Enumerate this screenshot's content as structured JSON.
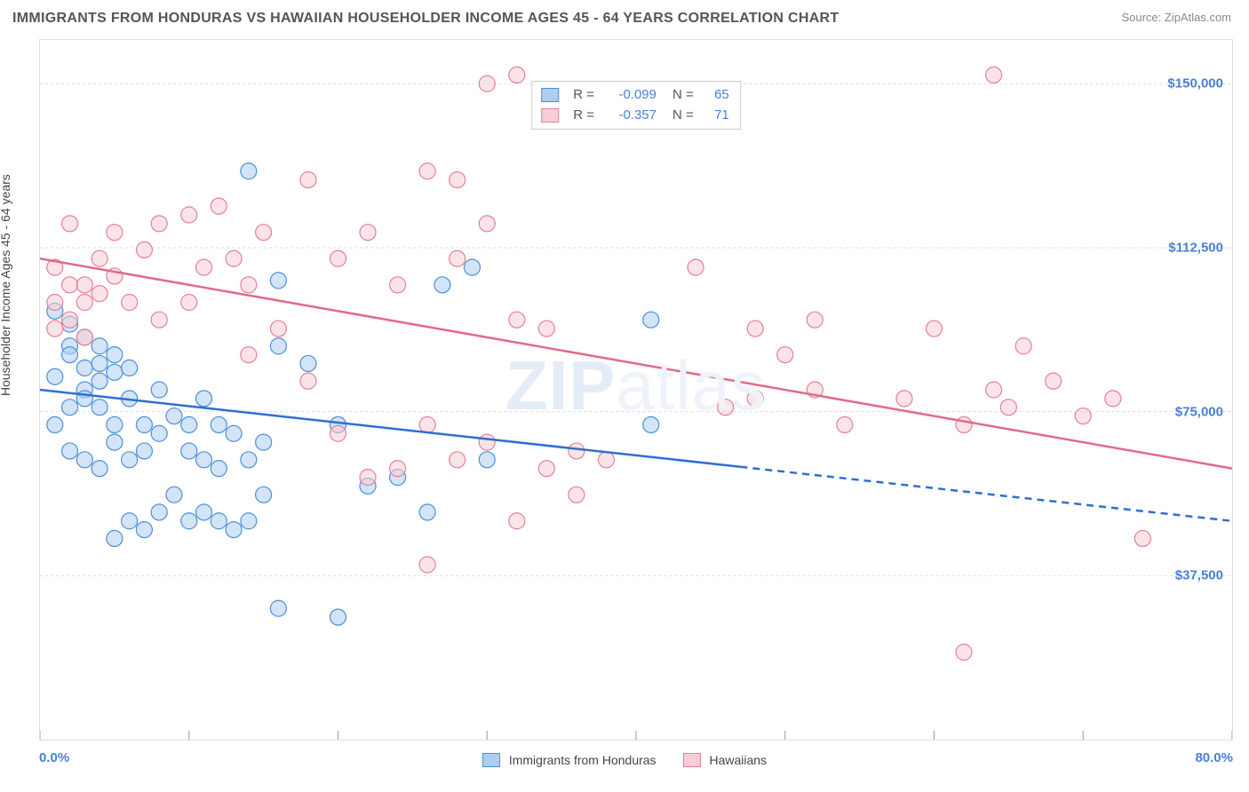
{
  "title": "IMMIGRANTS FROM HONDURAS VS HAWAIIAN HOUSEHOLDER INCOME AGES 45 - 64 YEARS CORRELATION CHART",
  "source": "Source: ZipAtlas.com",
  "ylabel": "Householder Income Ages 45 - 64 years",
  "watermark_bold": "ZIP",
  "watermark_thin": "atlas",
  "xaxis": {
    "min_label": "0.0%",
    "max_label": "80.0%",
    "min": 0,
    "max": 80
  },
  "yaxis": {
    "min": 0,
    "max": 160000,
    "ticks": [
      37500,
      75000,
      112500,
      150000
    ],
    "tick_labels": [
      "$37,500",
      "$75,000",
      "$112,500",
      "$150,000"
    ]
  },
  "colors": {
    "blue_fill": "#aecdf0",
    "blue_stroke": "#4a90d9",
    "pink_fill": "#f7cdd6",
    "pink_stroke": "#e57f9a",
    "blue_line": "#2e6fd1",
    "pink_line": "#e26a88",
    "grid": "#dddddd",
    "axis_text": "#4a7fd8"
  },
  "series": [
    {
      "name": "Immigrants from Honduras",
      "color_fill": "#aecdf0",
      "color_stroke": "#4a90d9",
      "R": "-0.099",
      "N": "65",
      "trend": {
        "y_at_xmin": 80000,
        "y_at_xmax": 50000,
        "solid_until_x": 47
      },
      "points": [
        [
          2,
          90000
        ],
        [
          2,
          95000
        ],
        [
          1,
          98000
        ],
        [
          3,
          85000
        ],
        [
          3,
          92000
        ],
        [
          2,
          88000
        ],
        [
          1,
          83000
        ],
        [
          3,
          80000
        ],
        [
          4,
          90000
        ],
        [
          4,
          86000
        ],
        [
          5,
          88000
        ],
        [
          4,
          82000
        ],
        [
          5,
          84000
        ],
        [
          3,
          78000
        ],
        [
          4,
          76000
        ],
        [
          5,
          72000
        ],
        [
          6,
          85000
        ],
        [
          6,
          78000
        ],
        [
          5,
          68000
        ],
        [
          6,
          64000
        ],
        [
          7,
          72000
        ],
        [
          8,
          80000
        ],
        [
          7,
          66000
        ],
        [
          8,
          70000
        ],
        [
          9,
          74000
        ],
        [
          10,
          72000
        ],
        [
          10,
          66000
        ],
        [
          11,
          78000
        ],
        [
          12,
          72000
        ],
        [
          11,
          64000
        ],
        [
          12,
          62000
        ],
        [
          13,
          70000
        ],
        [
          14,
          64000
        ],
        [
          9,
          56000
        ],
        [
          8,
          52000
        ],
        [
          10,
          50000
        ],
        [
          11,
          52000
        ],
        [
          12,
          50000
        ],
        [
          13,
          48000
        ],
        [
          14,
          50000
        ],
        [
          15,
          68000
        ],
        [
          16,
          90000
        ],
        [
          16,
          105000
        ],
        [
          15,
          56000
        ],
        [
          6,
          50000
        ],
        [
          7,
          48000
        ],
        [
          5,
          46000
        ],
        [
          4,
          62000
        ],
        [
          3,
          64000
        ],
        [
          2,
          66000
        ],
        [
          14,
          130000
        ],
        [
          18,
          86000
        ],
        [
          20,
          72000
        ],
        [
          22,
          58000
        ],
        [
          24,
          60000
        ],
        [
          27,
          104000
        ],
        [
          29,
          108000
        ],
        [
          26,
          52000
        ],
        [
          30,
          64000
        ],
        [
          16,
          30000
        ],
        [
          20,
          28000
        ],
        [
          41,
          96000
        ],
        [
          41,
          72000
        ],
        [
          2,
          76000
        ],
        [
          1,
          72000
        ]
      ]
    },
    {
      "name": "Hawaiians",
      "color_fill": "#f7cdd6",
      "color_stroke": "#e57f9a",
      "R": "-0.357",
      "N": "71",
      "trend": {
        "y_at_xmin": 110000,
        "y_at_xmax": 62000,
        "solid_until_x": 80
      },
      "points": [
        [
          1,
          100000
        ],
        [
          2,
          104000
        ],
        [
          1,
          108000
        ],
        [
          2,
          96000
        ],
        [
          3,
          100000
        ],
        [
          2,
          118000
        ],
        [
          4,
          110000
        ],
        [
          5,
          116000
        ],
        [
          4,
          102000
        ],
        [
          6,
          100000
        ],
        [
          7,
          112000
        ],
        [
          8,
          118000
        ],
        [
          8,
          96000
        ],
        [
          10,
          120000
        ],
        [
          12,
          122000
        ],
        [
          10,
          100000
        ],
        [
          11,
          108000
        ],
        [
          13,
          110000
        ],
        [
          14,
          104000
        ],
        [
          14,
          88000
        ],
        [
          15,
          116000
        ],
        [
          18,
          128000
        ],
        [
          16,
          94000
        ],
        [
          18,
          82000
        ],
        [
          20,
          110000
        ],
        [
          22,
          116000
        ],
        [
          24,
          104000
        ],
        [
          26,
          130000
        ],
        [
          28,
          110000
        ],
        [
          28,
          128000
        ],
        [
          30,
          150000
        ],
        [
          32,
          152000
        ],
        [
          30,
          118000
        ],
        [
          32,
          96000
        ],
        [
          26,
          72000
        ],
        [
          28,
          64000
        ],
        [
          24,
          62000
        ],
        [
          20,
          70000
        ],
        [
          22,
          60000
        ],
        [
          30,
          68000
        ],
        [
          34,
          94000
        ],
        [
          36,
          66000
        ],
        [
          36,
          56000
        ],
        [
          38,
          64000
        ],
        [
          34,
          62000
        ],
        [
          44,
          108000
        ],
        [
          46,
          76000
        ],
        [
          48,
          94000
        ],
        [
          48,
          78000
        ],
        [
          50,
          88000
        ],
        [
          52,
          96000
        ],
        [
          52,
          80000
        ],
        [
          54,
          72000
        ],
        [
          58,
          78000
        ],
        [
          60,
          94000
        ],
        [
          62,
          72000
        ],
        [
          64,
          80000
        ],
        [
          65,
          76000
        ],
        [
          66,
          90000
        ],
        [
          68,
          82000
        ],
        [
          70,
          74000
        ],
        [
          72,
          78000
        ],
        [
          74,
          46000
        ],
        [
          62,
          20000
        ],
        [
          64,
          152000
        ],
        [
          1,
          94000
        ],
        [
          3,
          92000
        ],
        [
          3,
          104000
        ],
        [
          5,
          106000
        ],
        [
          26,
          40000
        ],
        [
          32,
          50000
        ]
      ]
    }
  ],
  "bottom_legend": [
    {
      "label": "Immigrants from Honduras",
      "fill": "#aecdf0",
      "stroke": "#4a90d9"
    },
    {
      "label": "Hawaiians",
      "fill": "#f7cdd6",
      "stroke": "#e57f9a"
    }
  ],
  "marker_radius": 9,
  "marker_opacity": 0.55,
  "line_width": 2.5
}
